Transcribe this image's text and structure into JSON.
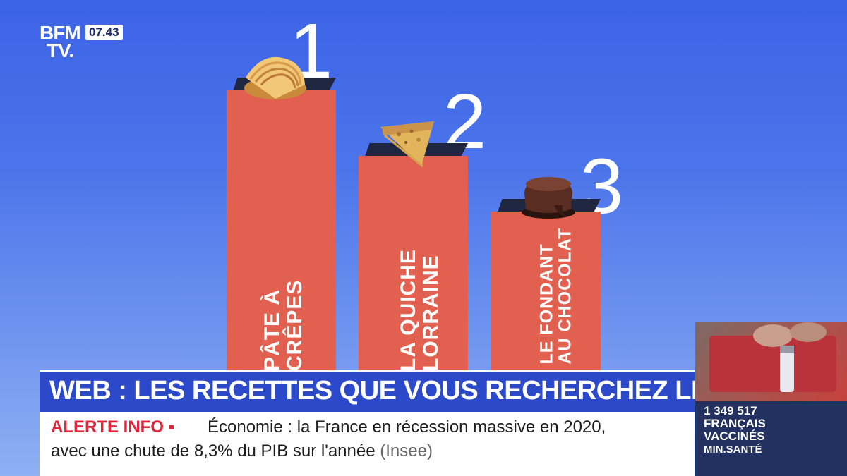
{
  "logo": {
    "line1": "BFM",
    "line2": "TV.",
    "time": "07.43"
  },
  "podium": [
    {
      "rank": "1",
      "label_line1": "PÂTE À",
      "label_line2": "CRÊPES",
      "food_icon": "crepes-image"
    },
    {
      "rank": "2",
      "label_line1": "LA QUICHE",
      "label_line2": "LORRAINE",
      "food_icon": "quiche-image"
    },
    {
      "rank": "3",
      "label_line1": "LE FONDANT",
      "label_line2": "AU CHOCOLAT",
      "food_icon": "fondant-image"
    }
  ],
  "headline": "WEB : LES RECETTES QUE VOUS RECHERCHEZ LE PLUS",
  "ticker": {
    "alert": "ALERTE INFO",
    "line1": "Économie : la France en récession massive en 2020,",
    "line2": "avec une chute de 8,3% du PIB sur l'année",
    "source": "(Insee)"
  },
  "side_panel": {
    "count": "1 349 517",
    "line1": "FRANÇAIS",
    "line2": "VACCINÉS",
    "source": "MIN.SANTÉ"
  },
  "colors": {
    "background": "#3b63e6",
    "podium": "#e2604f",
    "band": "#2b49c9",
    "alert": "#e0263b"
  }
}
